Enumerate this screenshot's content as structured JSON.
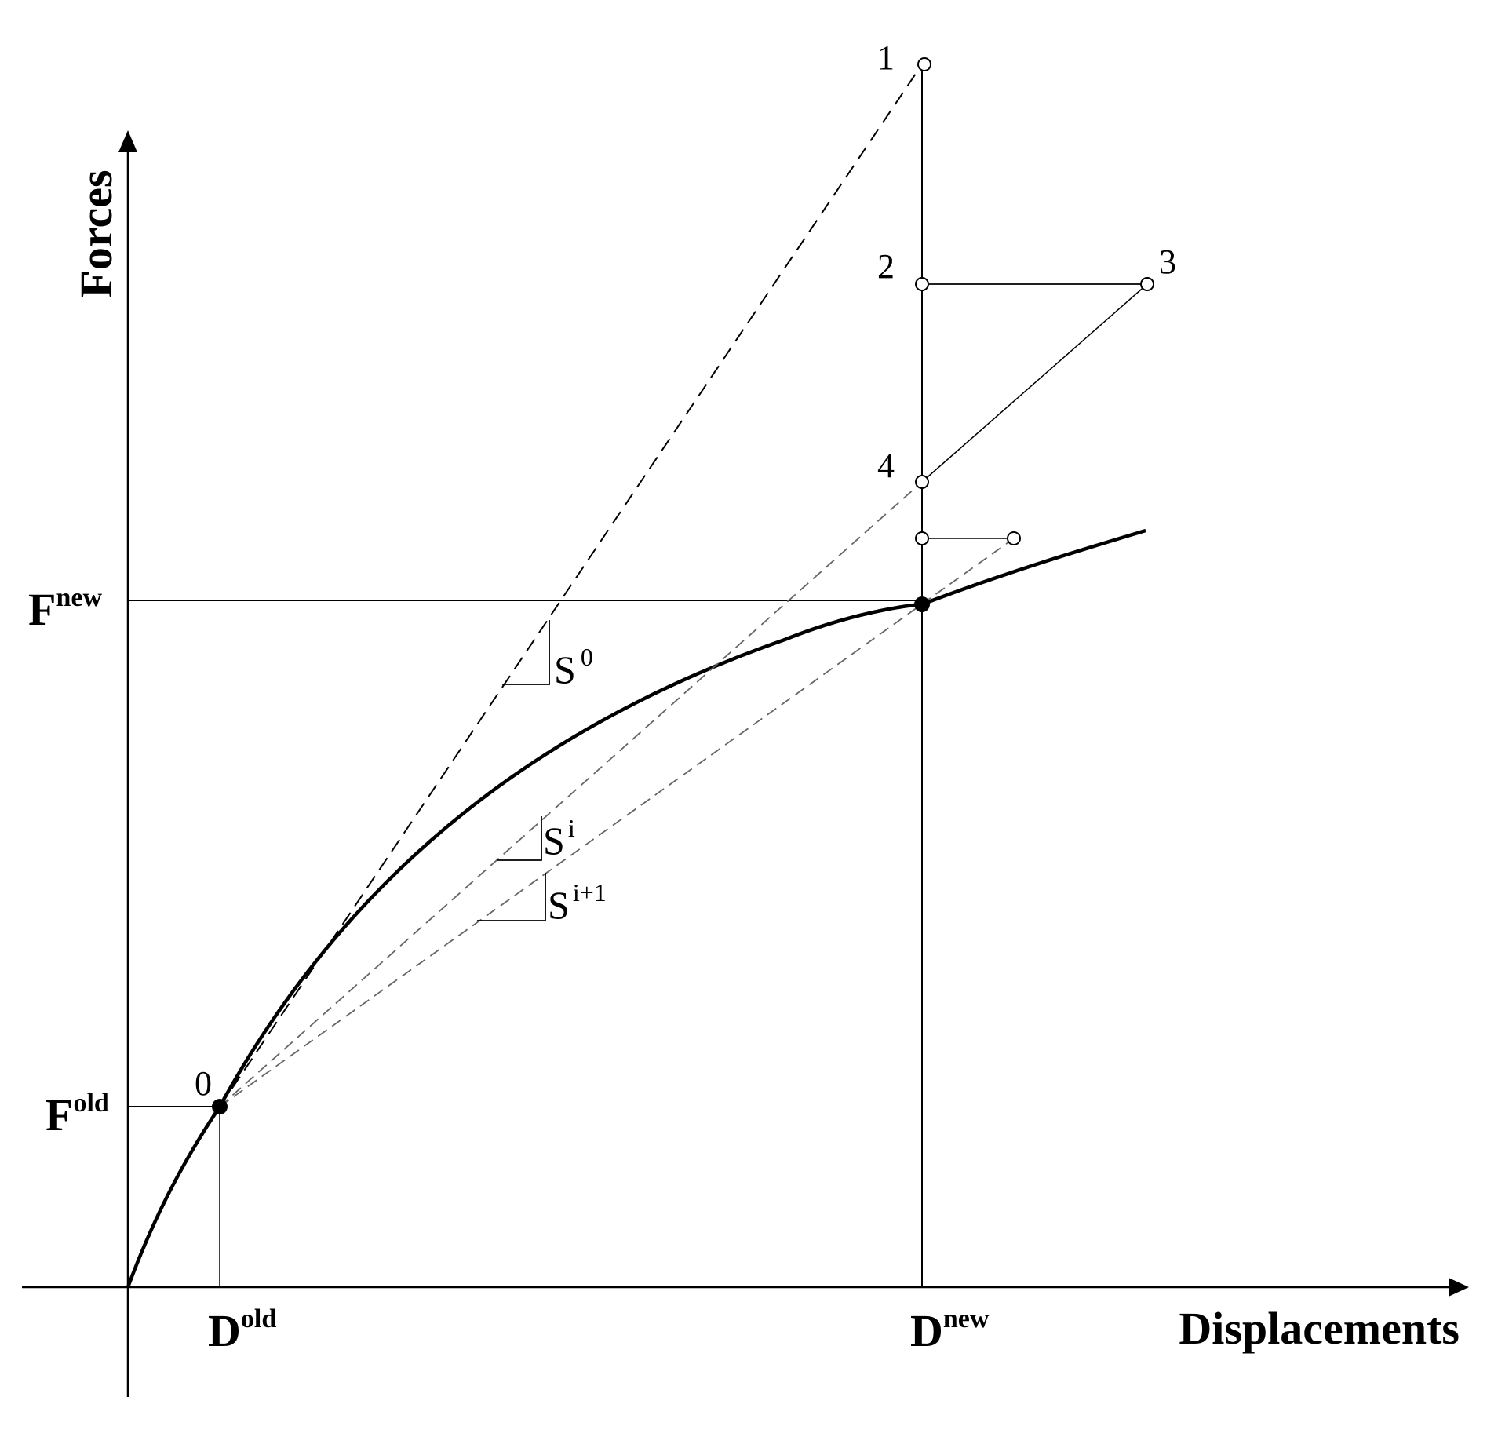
{
  "axes": {
    "x_label": "Displacements",
    "y_label": "Forces"
  },
  "markers": {
    "d_old": {
      "base": "D",
      "sup": "old"
    },
    "d_new": {
      "base": "D",
      "sup": "new"
    },
    "f_old": {
      "base": "F",
      "sup": "old"
    },
    "f_new": {
      "base": "F",
      "sup": "new"
    }
  },
  "iteration_labels": {
    "p0": "0",
    "p1": "1",
    "p2": "2",
    "p3": "3",
    "p4": "4"
  },
  "slopes": {
    "s0": {
      "base": "S",
      "sup": "0"
    },
    "si": {
      "base": "S",
      "sup": "i"
    },
    "si1": {
      "base": "S",
      "sup": "i+1"
    }
  }
}
